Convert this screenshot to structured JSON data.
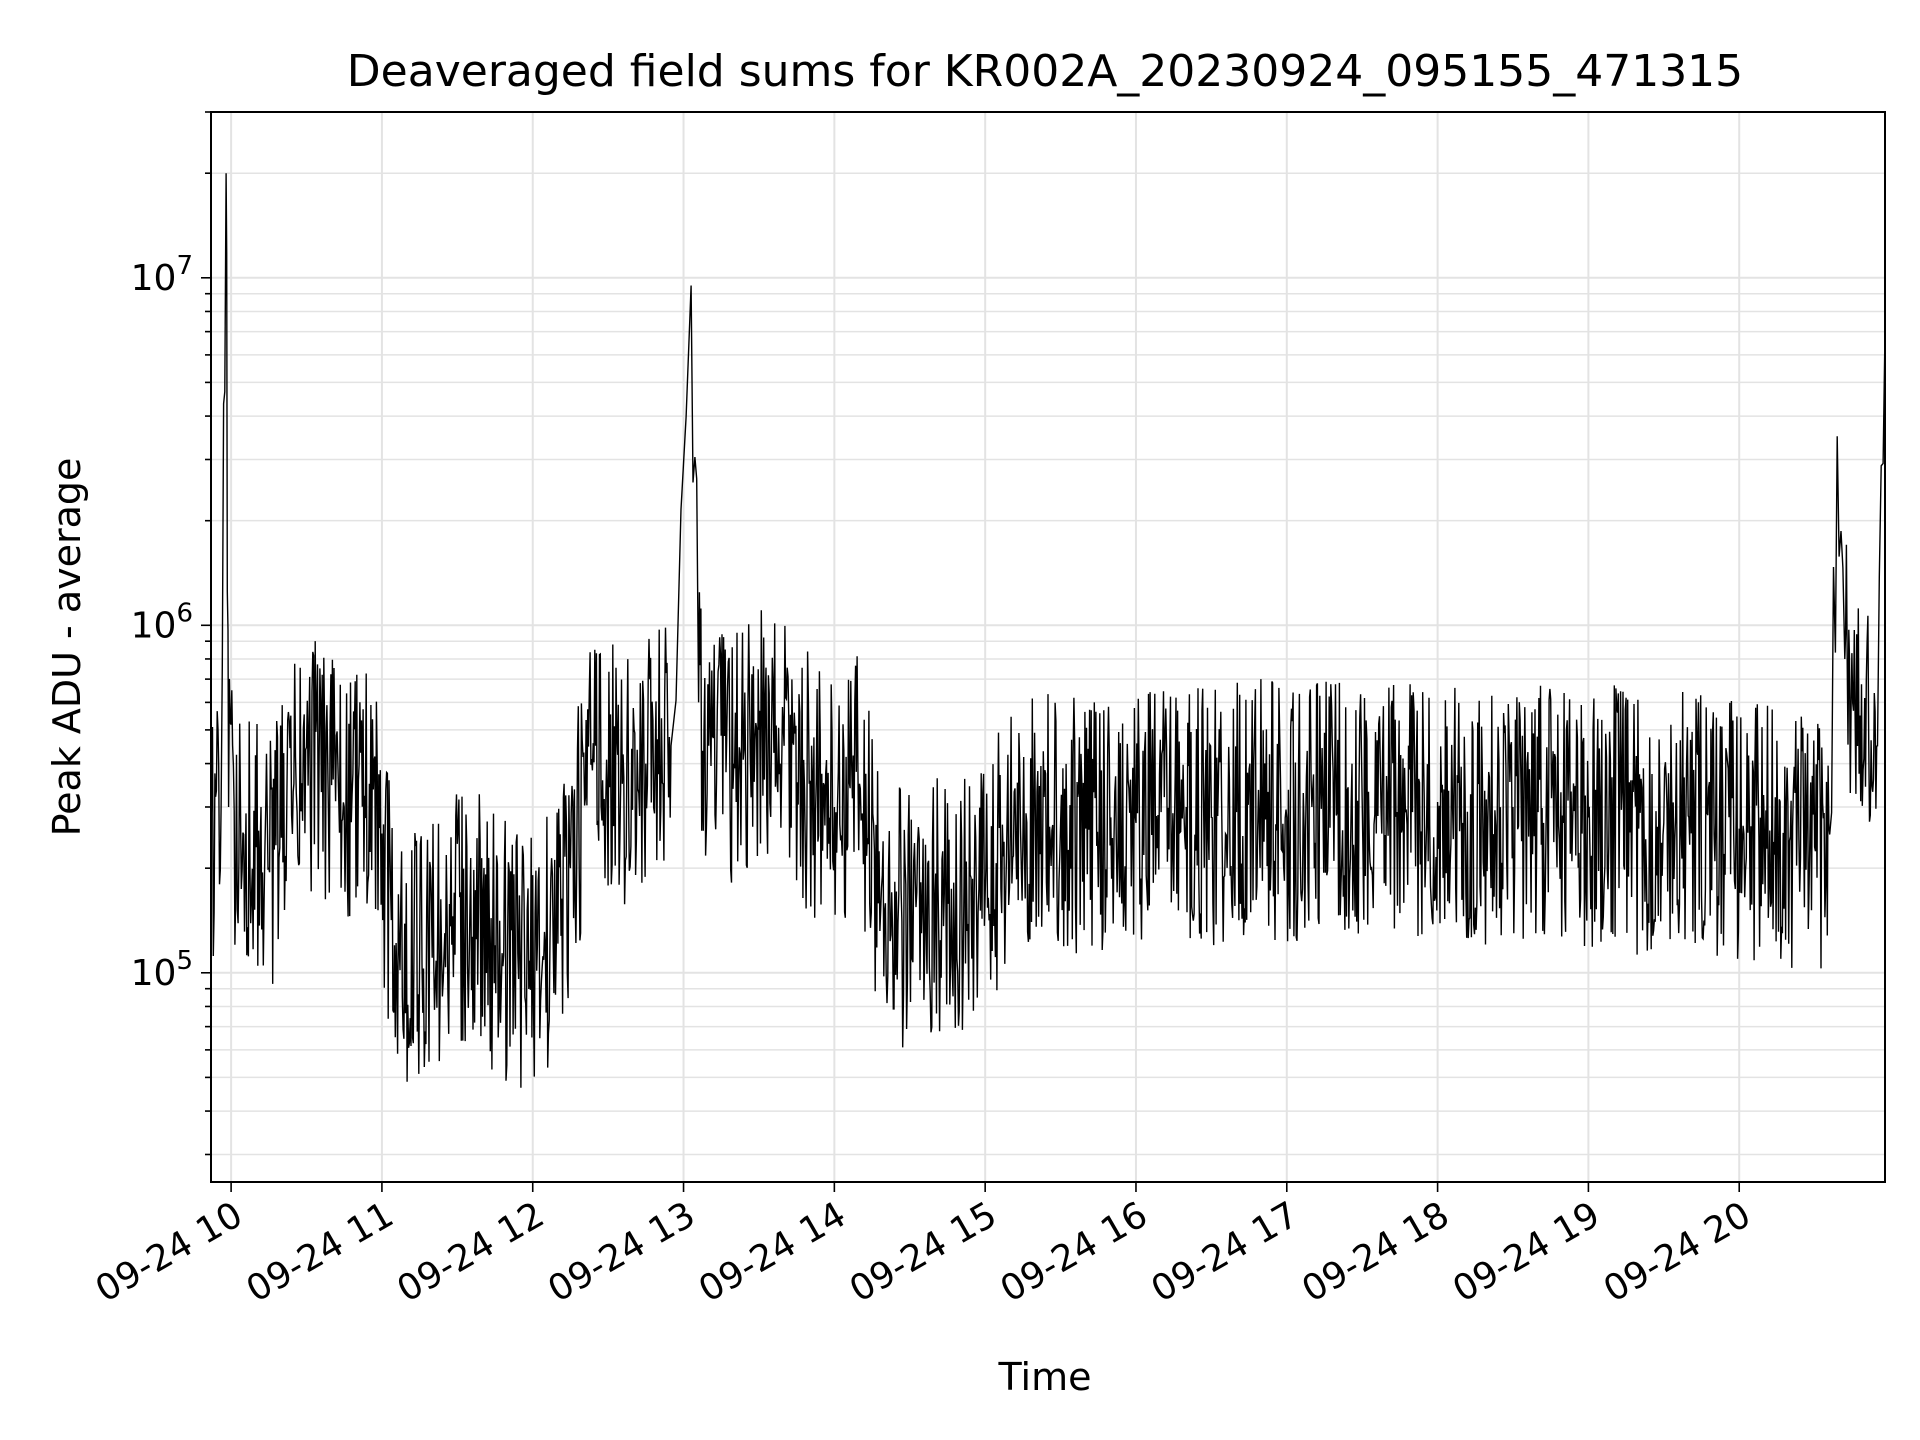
{
  "chart_data": {
    "type": "line",
    "title": "Deaveraged field sums for KR002A_20230924_095155_471315",
    "xlabel": "Time",
    "ylabel": "Peak ADU - average",
    "yscale": "log",
    "ylim": [
      25000,
      30000000
    ],
    "xlim": [
      "2023-09-24 09:52",
      "2023-09-24 20:58"
    ],
    "grid": true,
    "line_color": "#000000",
    "x_ticks": [
      {
        "t": "2023-09-24 10:00",
        "label": "09-24 10"
      },
      {
        "t": "2023-09-24 11:00",
        "label": "09-24 11"
      },
      {
        "t": "2023-09-24 12:00",
        "label": "09-24 12"
      },
      {
        "t": "2023-09-24 13:00",
        "label": "09-24 13"
      },
      {
        "t": "2023-09-24 14:00",
        "label": "09-24 14"
      },
      {
        "t": "2023-09-24 15:00",
        "label": "09-24 15"
      },
      {
        "t": "2023-09-24 16:00",
        "label": "09-24 16"
      },
      {
        "t": "2023-09-24 17:00",
        "label": "09-24 17"
      },
      {
        "t": "2023-09-24 18:00",
        "label": "09-24 18"
      },
      {
        "t": "2023-09-24 19:00",
        "label": "09-24 19"
      },
      {
        "t": "2023-09-24 20:00",
        "label": "09-24 20"
      }
    ],
    "y_ticks": [
      {
        "value": 100000,
        "base": "10",
        "exp": "5"
      },
      {
        "value": 1000000,
        "base": "10",
        "exp": "6"
      },
      {
        "value": 10000000,
        "base": "10",
        "exp": "7"
      }
    ],
    "series": [
      {
        "x": [
          "2023-09-24 09:52",
          "2023-09-24 09:56",
          "2023-09-24 09:58",
          "2023-09-24 09:59",
          "2023-09-24 10:05",
          "2023-09-24 10:15",
          "2023-09-24 10:25",
          "2023-09-24 10:35",
          "2023-09-24 10:45",
          "2023-09-24 10:55",
          "2023-09-24 11:05",
          "2023-09-24 11:15",
          "2023-09-24 11:25",
          "2023-09-24 11:35",
          "2023-09-24 11:45",
          "2023-09-24 11:55",
          "2023-09-24 12:05",
          "2023-09-24 12:15",
          "2023-09-24 12:25",
          "2023-09-24 12:35",
          "2023-09-24 12:45",
          "2023-09-24 12:55",
          "2023-09-24 13:03",
          "2023-09-24 13:06",
          "2023-09-24 13:10",
          "2023-09-24 13:20",
          "2023-09-24 13:30",
          "2023-09-24 13:40",
          "2023-09-24 13:50",
          "2023-09-24 14:00",
          "2023-09-24 14:10",
          "2023-09-24 14:20",
          "2023-09-24 14:30",
          "2023-09-24 14:40",
          "2023-09-24 14:50",
          "2023-09-24 15:00",
          "2023-09-24 15:10",
          "2023-09-24 15:20",
          "2023-09-24 15:30",
          "2023-09-24 15:40",
          "2023-09-24 15:50",
          "2023-09-24 16:00",
          "2023-09-24 16:10",
          "2023-09-24 16:20",
          "2023-09-24 16:30",
          "2023-09-24 16:40",
          "2023-09-24 16:50",
          "2023-09-24 17:00",
          "2023-09-24 17:10",
          "2023-09-24 17:20",
          "2023-09-24 17:30",
          "2023-09-24 17:40",
          "2023-09-24 17:50",
          "2023-09-24 18:00",
          "2023-09-24 18:10",
          "2023-09-24 18:20",
          "2023-09-24 18:30",
          "2023-09-24 18:40",
          "2023-09-24 18:50",
          "2023-09-24 19:00",
          "2023-09-24 19:10",
          "2023-09-24 19:20",
          "2023-09-24 19:30",
          "2023-09-24 19:40",
          "2023-09-24 19:50",
          "2023-09-24 20:00",
          "2023-09-24 20:10",
          "2023-09-24 20:20",
          "2023-09-24 20:30",
          "2023-09-24 20:36",
          "2023-09-24 20:39",
          "2023-09-24 20:42",
          "2023-09-24 20:48",
          "2023-09-24 20:55",
          "2023-09-24 20:58"
        ],
        "y": [
          250000,
          300000,
          20000000,
          300000,
          250000,
          200000,
          350000,
          400000,
          300000,
          350000,
          120000,
          110000,
          130000,
          150000,
          120000,
          110000,
          120000,
          200000,
          450000,
          350000,
          400000,
          450000,
          9500000,
          600000,
          450000,
          400000,
          500000,
          450000,
          350000,
          300000,
          350000,
          150000,
          140000,
          160000,
          150000,
          170000,
          250000,
          280000,
          270000,
          260000,
          280000,
          270000,
          290000,
          300000,
          280000,
          290000,
          300000,
          280000,
          300000,
          290000,
          310000,
          300000,
          290000,
          310000,
          270000,
          280000,
          300000,
          290000,
          270000,
          280000,
          290000,
          260000,
          270000,
          280000,
          250000,
          260000,
          250000,
          240000,
          230000,
          250000,
          3500000,
          800000,
          550000,
          450000,
          7000000
        ]
      }
    ]
  }
}
